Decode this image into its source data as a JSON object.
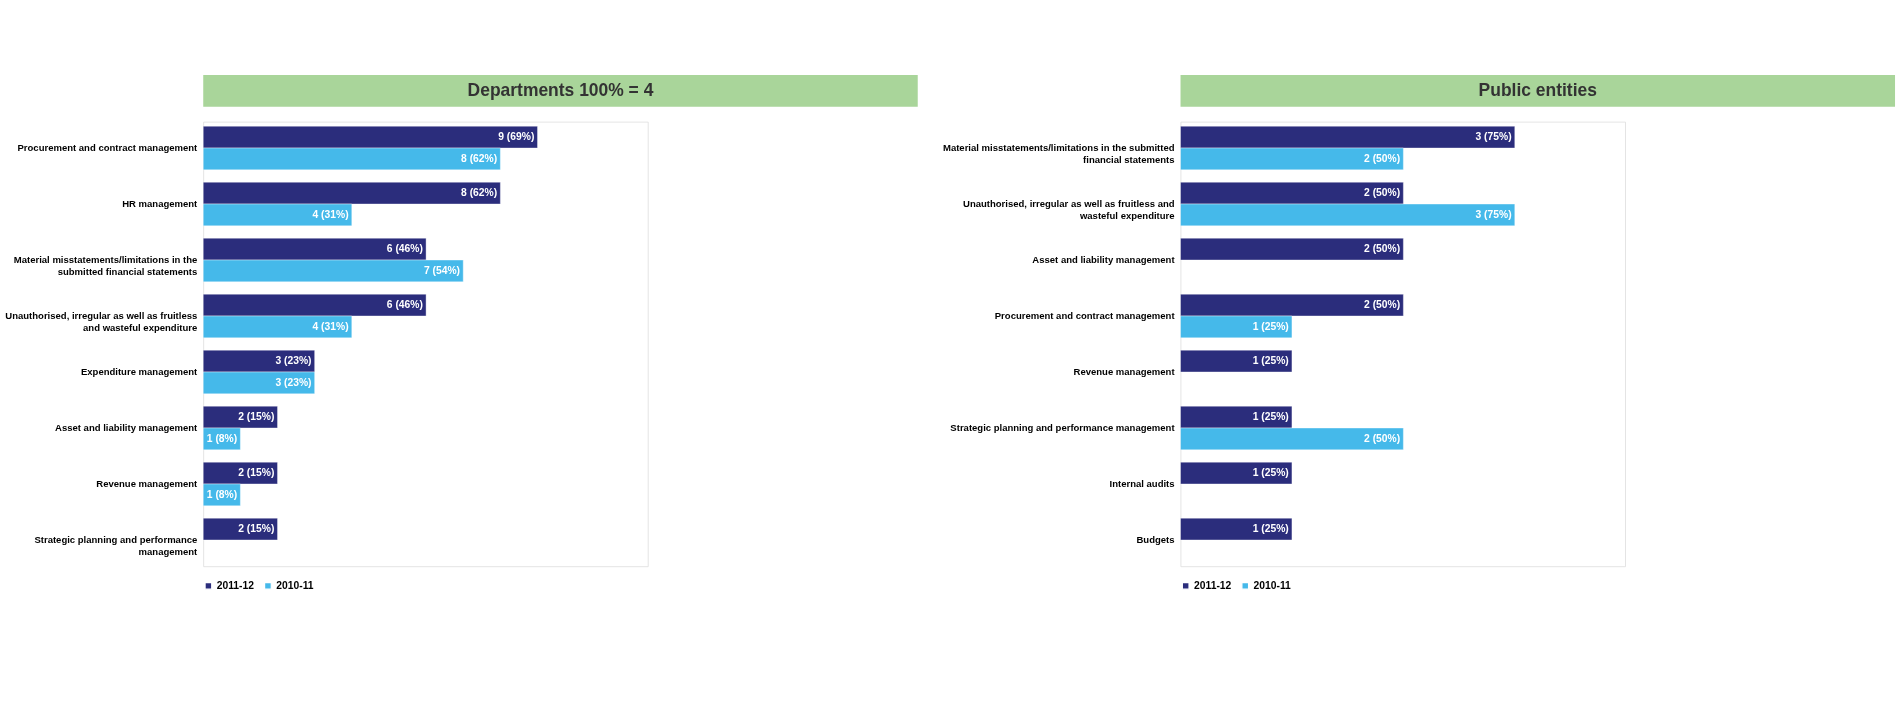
{
  "chart_data": [
    {
      "type": "bar",
      "orientation": "horizontal",
      "title": "Departments 100% = 4",
      "legend": "bottom",
      "categories": [
        "Procurement and contract management",
        "HR management",
        "Material misstatements/limitations in the\nsubmitted financial statements",
        "Unauthorised, irregular as well as fruitless\nand wasteful expenditure",
        "Expenditure management",
        "Asset and liability management",
        "Revenue management",
        "Strategic planning and performance\nmanagement"
      ],
      "series": [
        {
          "name": "2011-12",
          "color": "#2b2d7c",
          "values": [
            9,
            8,
            6,
            6,
            3,
            2,
            2,
            2
          ],
          "value_labels": [
            "9 (69%)",
            "8 (62%)",
            "6 (46%)",
            "6 (46%)",
            "3 (23%)",
            "2 (15%)",
            "2  (15%)",
            "2 (15%)"
          ]
        },
        {
          "name": "2010-11",
          "color": "#45b9ea",
          "values": [
            8,
            4,
            7,
            4,
            3,
            1,
            1,
            null
          ],
          "value_labels": [
            "8 (62%)",
            "4 (31%)",
            "7 (54%)",
            "4 (31%)",
            "3 (23%)",
            "1 (8%)",
            "1 (8%)",
            null
          ]
        }
      ]
    },
    {
      "type": "bar",
      "orientation": "horizontal",
      "title": "Public entities",
      "legend": "bottom",
      "categories": [
        "Material misstatements/limitations in the submitted\nfinancial statements",
        "Unauthorised, irregular as well as fruitless and\nwasteful expenditure",
        "Asset and liability management",
        "Procurement and contract management",
        "Revenue management",
        "Strategic planning and performance management",
        "Internal audits",
        "Budgets"
      ],
      "series": [
        {
          "name": "2011-12",
          "color": "#2b2d7c",
          "values": [
            3,
            2,
            2,
            2,
            1,
            1,
            1,
            1
          ],
          "value_labels": [
            "3 (75%)",
            "2 (50%)",
            "2 (50%)",
            "2 (50%)",
            "1 (25%)",
            "1 (25%)",
            "1 (25%)",
            "1 (25%)"
          ]
        },
        {
          "name": "2010-11",
          "color": "#45b9ea",
          "values": [
            2,
            3,
            null,
            1,
            null,
            2,
            null,
            null
          ],
          "value_labels": [
            "2 (50%)",
            "3 (75%)",
            null,
            "1 (25%)",
            null,
            "2 (50%)",
            null,
            null
          ]
        }
      ]
    }
  ]
}
